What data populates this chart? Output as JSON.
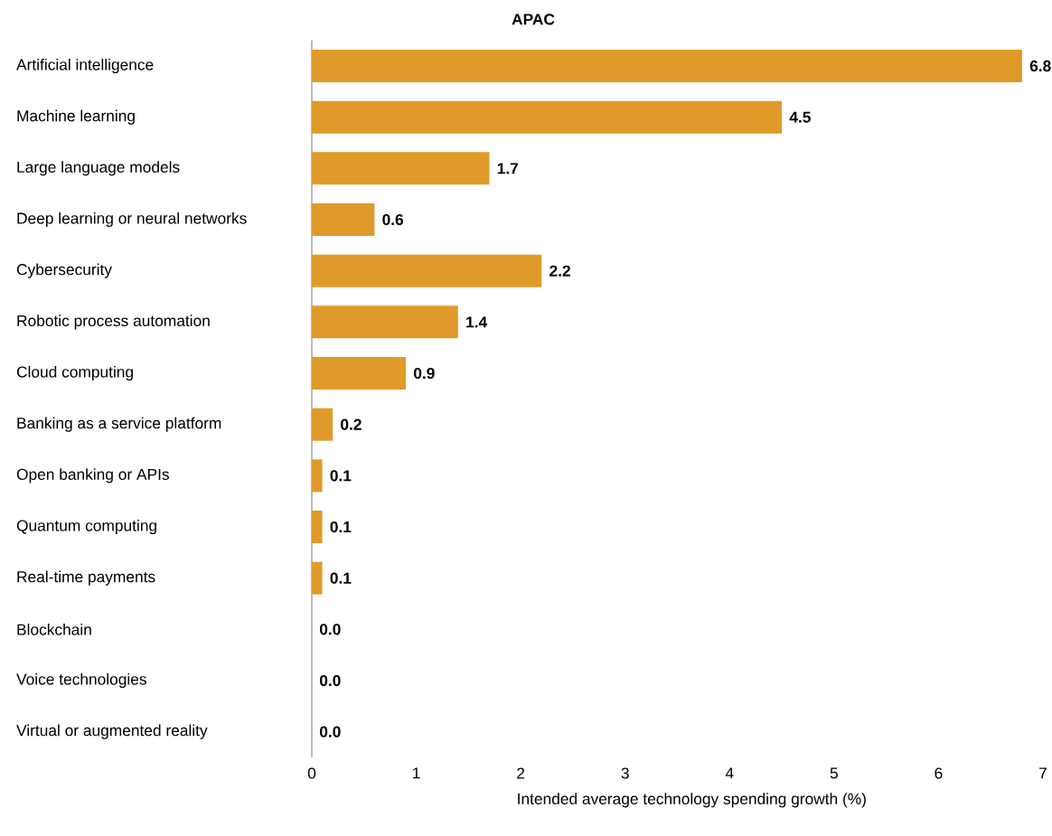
{
  "chart_data": {
    "type": "bar",
    "orientation": "horizontal",
    "title": "APAC",
    "xlabel": "Intended average technology spending growth (%)",
    "categories": [
      "Artificial intelligence",
      "Machine learning",
      "Large language models",
      "Deep learning or neural networks",
      "Cybersecurity",
      "Robotic process automation",
      "Cloud computing",
      "Banking as a service platform",
      "Open banking or APIs",
      "Quantum computing",
      "Real-time payments",
      "Blockchain",
      "Voice technologies",
      "Virtual or augmented reality"
    ],
    "values": [
      6.8,
      4.5,
      1.7,
      0.6,
      2.2,
      1.4,
      0.9,
      0.2,
      0.1,
      0.1,
      0.1,
      0.0,
      0.0,
      0.0
    ],
    "value_labels": [
      "6.8",
      "4.5",
      "1.7",
      "0.6",
      "2.2",
      "1.4",
      "0.9",
      "0.2",
      "0.1",
      "0.1",
      "0.1",
      "0.0",
      "0.0",
      "0.0"
    ],
    "color": "#e09a2a",
    "xlim": [
      0,
      7
    ],
    "xticks": [
      0,
      1,
      2,
      3,
      4,
      5,
      6,
      7
    ],
    "grid": false
  }
}
